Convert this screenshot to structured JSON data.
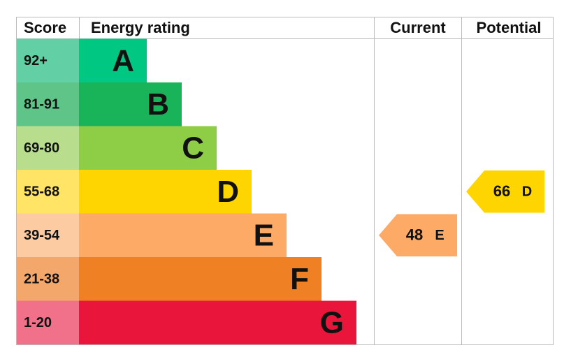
{
  "header": {
    "score": "Score",
    "rating": "Energy rating",
    "current": "Current",
    "potential": "Potential"
  },
  "bands": [
    {
      "score": "92+",
      "letter": "A",
      "color": "#00c781",
      "light": "#62cfa4"
    },
    {
      "score": "81-91",
      "letter": "B",
      "color": "#19b459",
      "light": "#5ec488"
    },
    {
      "score": "69-80",
      "letter": "C",
      "color": "#8dce46",
      "light": "#b7dd8d"
    },
    {
      "score": "55-68",
      "letter": "D",
      "color": "#ffd500",
      "light": "#ffe466"
    },
    {
      "score": "39-54",
      "letter": "E",
      "color": "#fcaa65",
      "light": "#fdcba1"
    },
    {
      "score": "21-38",
      "letter": "F",
      "color": "#ef8023",
      "light": "#f4a76b"
    },
    {
      "score": "1-20",
      "letter": "G",
      "color": "#e9153b",
      "light": "#f07189"
    }
  ],
  "current": {
    "value": 48,
    "letter": "E"
  },
  "potential": {
    "value": 66,
    "letter": "D"
  }
}
